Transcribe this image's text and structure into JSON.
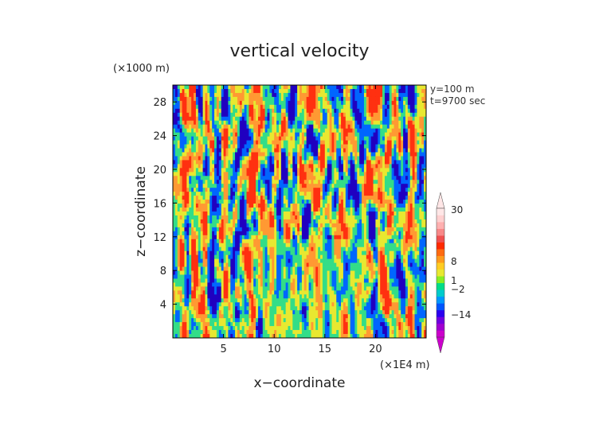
{
  "chart_data": {
    "type": "heatmap",
    "title": "vertical velocity",
    "xlabel": "x−coordinate",
    "ylabel": "z−coordinate",
    "x_unit": "(×1E4 m)",
    "y_unit": "(×1000 m)",
    "annotations": [
      "y=100 m",
      "t=9700 sec"
    ],
    "xlim": [
      0,
      25
    ],
    "ylim": [
      0,
      30
    ],
    "x_ticks": [
      5,
      10,
      15,
      20
    ],
    "y_ticks": [
      4,
      8,
      12,
      16,
      20,
      24,
      28
    ],
    "colorbar": {
      "tick_labels": [
        "30",
        "8",
        "1",
        "−2",
        "−14"
      ],
      "colors": [
        "#cc00cc",
        "#a000d0",
        "#7000e0",
        "#2a00f0",
        "#0055ff",
        "#0098ff",
        "#00cccc",
        "#00dd88",
        "#88ee22",
        "#e8e830",
        "#ffcc22",
        "#ff9a1c",
        "#ff6a10",
        "#ff2a00",
        "#f05050",
        "#f88888",
        "#ffb0b0",
        "#ffd0d0",
        "#ffe6e6"
      ]
    },
    "field_description_colors": {
      "strong_up": "#ff3010",
      "up": "#ff9933",
      "neutral": "#e8e830",
      "weak_down": "#33dd88",
      "down": "#0066ff",
      "strong_down": "#2000c0"
    }
  }
}
